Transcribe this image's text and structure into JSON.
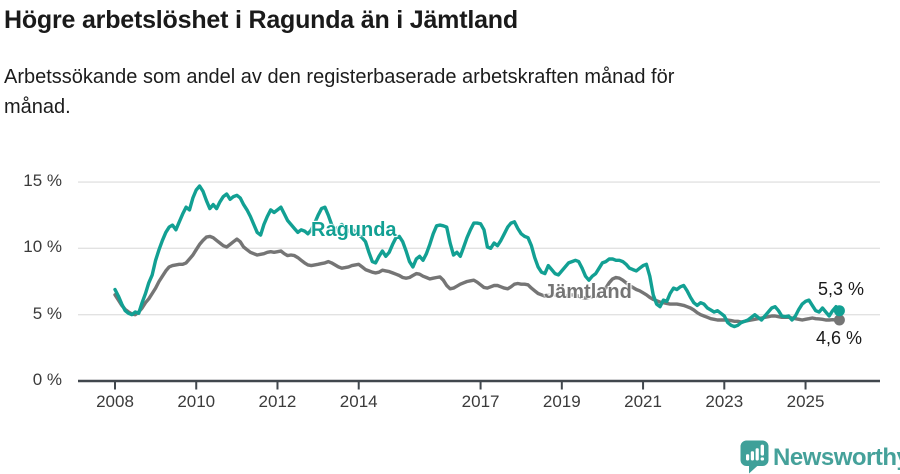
{
  "footer": {
    "brand": "Newsworthy"
  },
  "colors": {
    "accent_teal": "#12a093",
    "neutral_gray": "#757575",
    "grid": "#e2e2e2",
    "axis": "#41474d",
    "text_dark": "#1a1a1a",
    "logo_teal": "#45a19a"
  },
  "chart_data": {
    "type": "line",
    "title": "Högre arbetslöshet i Ragunda än i Jämtland",
    "subtitle_lines": [
      "Arbetssökande som andel av den registerbaserade arbetskraften månad för",
      "månad."
    ],
    "unit": "%",
    "x_interval": "monthly",
    "grid": "horizontal",
    "ylim": [
      0,
      16.6
    ],
    "xlim": [
      2007.1,
      2026.8
    ],
    "y_ticks": [
      {
        "value": 0,
        "label": "0 %"
      },
      {
        "value": 5,
        "label": "5 %"
      },
      {
        "value": 10,
        "label": "10 %"
      },
      {
        "value": 15,
        "label": "15 %"
      }
    ],
    "x_ticks": [
      {
        "value": 2008,
        "label": "2008"
      },
      {
        "value": 2010,
        "label": "2010"
      },
      {
        "value": 2012,
        "label": "2012"
      },
      {
        "value": 2014,
        "label": "2014"
      },
      {
        "value": 2017,
        "label": "2017"
      },
      {
        "value": 2019,
        "label": "2019"
      },
      {
        "value": 2021,
        "label": "2021"
      },
      {
        "value": 2023,
        "label": "2023"
      },
      {
        "value": 2025,
        "label": "2025"
      }
    ],
    "series": [
      {
        "name": "Ragunda",
        "color": "#12a093",
        "end_label": "5,3 %",
        "final_value": 5.3,
        "start_year": 2008,
        "values": [
          6.9,
          6.4,
          5.8,
          5.3,
          5.1,
          5.0,
          5.2,
          5.1,
          5.9,
          6.6,
          7.4,
          8.0,
          9.1,
          9.9,
          10.6,
          11.2,
          11.6,
          11.75,
          11.4,
          12.0,
          12.6,
          13.1,
          12.9,
          13.8,
          14.4,
          14.7,
          14.3,
          13.6,
          13.0,
          13.3,
          13.0,
          13.5,
          13.9,
          14.1,
          13.7,
          13.9,
          14.0,
          13.8,
          13.3,
          12.9,
          12.4,
          11.8,
          11.2,
          11.0,
          11.8,
          12.4,
          12.9,
          12.7,
          12.9,
          13.1,
          12.6,
          12.1,
          11.8,
          11.5,
          11.2,
          11.4,
          11.3,
          11.1,
          11.4,
          11.9,
          12.5,
          13.0,
          13.1,
          12.5,
          11.8,
          11.4,
          11.6,
          11.8,
          11.5,
          11.3,
          11.5,
          11.2,
          11.0,
          10.8,
          10.5,
          9.7,
          9.0,
          8.9,
          9.4,
          9.8,
          9.4,
          9.7,
          10.3,
          10.8,
          10.9,
          10.5,
          9.8,
          9.0,
          8.6,
          9.2,
          9.4,
          9.1,
          9.6,
          10.3,
          11.1,
          11.7,
          11.75,
          11.7,
          11.6,
          10.4,
          9.5,
          9.7,
          9.4,
          10.1,
          10.8,
          11.4,
          11.9,
          11.9,
          11.85,
          11.4,
          10.1,
          10.0,
          10.4,
          10.2,
          10.6,
          11.1,
          11.6,
          11.9,
          12.0,
          11.5,
          11.1,
          10.9,
          10.8,
          10.2,
          9.3,
          8.6,
          8.2,
          8.1,
          8.7,
          8.4,
          8.1,
          8.0,
          8.3,
          8.6,
          8.9,
          9.0,
          9.1,
          9.0,
          8.5,
          7.9,
          7.6,
          7.9,
          8.1,
          8.5,
          8.9,
          9.0,
          9.2,
          9.2,
          9.1,
          9.1,
          9.0,
          8.8,
          8.5,
          8.4,
          8.3,
          8.5,
          8.7,
          8.8,
          7.9,
          6.5,
          5.8,
          5.6,
          6.1,
          6.0,
          6.6,
          7.0,
          6.9,
          7.1,
          7.2,
          6.8,
          6.3,
          5.9,
          5.7,
          5.9,
          5.8,
          5.5,
          5.35,
          5.2,
          5.3,
          5.1,
          4.9,
          4.4,
          4.2,
          4.1,
          4.2,
          4.4,
          4.5,
          4.6,
          4.8,
          5.0,
          4.8,
          4.6,
          4.9,
          5.2,
          5.5,
          5.6,
          5.3,
          4.9,
          4.85,
          4.9,
          4.6,
          4.9,
          5.4,
          5.8,
          6.0,
          6.1,
          5.7,
          5.3,
          5.2,
          5.5,
          5.2,
          4.9,
          5.3,
          5.6,
          5.3
        ]
      },
      {
        "name": "Jämtland",
        "color": "#757575",
        "end_label": "4,6 %",
        "final_value": 4.6,
        "start_year": 2008,
        "values": [
          6.5,
          6.1,
          5.7,
          5.4,
          5.2,
          5.05,
          5.0,
          5.2,
          5.5,
          5.9,
          6.2,
          6.6,
          7.0,
          7.5,
          7.9,
          8.3,
          8.6,
          8.7,
          8.75,
          8.8,
          8.8,
          8.9,
          9.2,
          9.5,
          9.9,
          10.3,
          10.6,
          10.85,
          10.9,
          10.8,
          10.6,
          10.4,
          10.2,
          10.1,
          10.3,
          10.5,
          10.7,
          10.5,
          10.1,
          9.9,
          9.7,
          9.6,
          9.5,
          9.55,
          9.6,
          9.7,
          9.75,
          9.7,
          9.75,
          9.8,
          9.6,
          9.45,
          9.5,
          9.45,
          9.3,
          9.1,
          8.9,
          8.75,
          8.7,
          8.75,
          8.8,
          8.85,
          8.9,
          9.0,
          8.9,
          8.75,
          8.6,
          8.5,
          8.55,
          8.6,
          8.7,
          8.75,
          8.8,
          8.6,
          8.4,
          8.3,
          8.2,
          8.15,
          8.2,
          8.35,
          8.3,
          8.25,
          8.15,
          8.05,
          7.95,
          7.8,
          7.75,
          7.8,
          7.95,
          8.1,
          8.05,
          7.9,
          7.8,
          7.7,
          7.75,
          7.8,
          7.85,
          7.6,
          7.2,
          6.95,
          7.0,
          7.15,
          7.3,
          7.4,
          7.5,
          7.55,
          7.6,
          7.45,
          7.25,
          7.05,
          7.0,
          7.1,
          7.2,
          7.2,
          7.1,
          7.0,
          6.95,
          7.1,
          7.3,
          7.35,
          7.3,
          7.3,
          7.25,
          7.0,
          6.8,
          6.6,
          6.5,
          6.4,
          6.45,
          6.5,
          6.5,
          6.45,
          6.4,
          6.4,
          6.45,
          6.5,
          6.45,
          6.4,
          6.3,
          6.25,
          6.3,
          6.35,
          6.4,
          6.5,
          6.7,
          7.0,
          7.4,
          7.7,
          7.8,
          7.75,
          7.6,
          7.4,
          7.2,
          7.05,
          6.9,
          6.8,
          6.65,
          6.5,
          6.3,
          6.15,
          6.05,
          5.95,
          5.9,
          5.85,
          5.8,
          5.8,
          5.8,
          5.75,
          5.7,
          5.6,
          5.5,
          5.35,
          5.15,
          5.0,
          4.9,
          4.8,
          4.7,
          4.65,
          4.6,
          4.6,
          4.6,
          4.6,
          4.55,
          4.5,
          4.5,
          4.45,
          4.5,
          4.55,
          4.6,
          4.65,
          4.7,
          4.75,
          4.8,
          4.85,
          4.9,
          4.9,
          4.85,
          4.8,
          4.8,
          4.8,
          4.75,
          4.7,
          4.65,
          4.6,
          4.65,
          4.7,
          4.75,
          4.7,
          4.68,
          4.65,
          4.6,
          4.6,
          4.62,
          4.6,
          4.6
        ]
      }
    ]
  }
}
